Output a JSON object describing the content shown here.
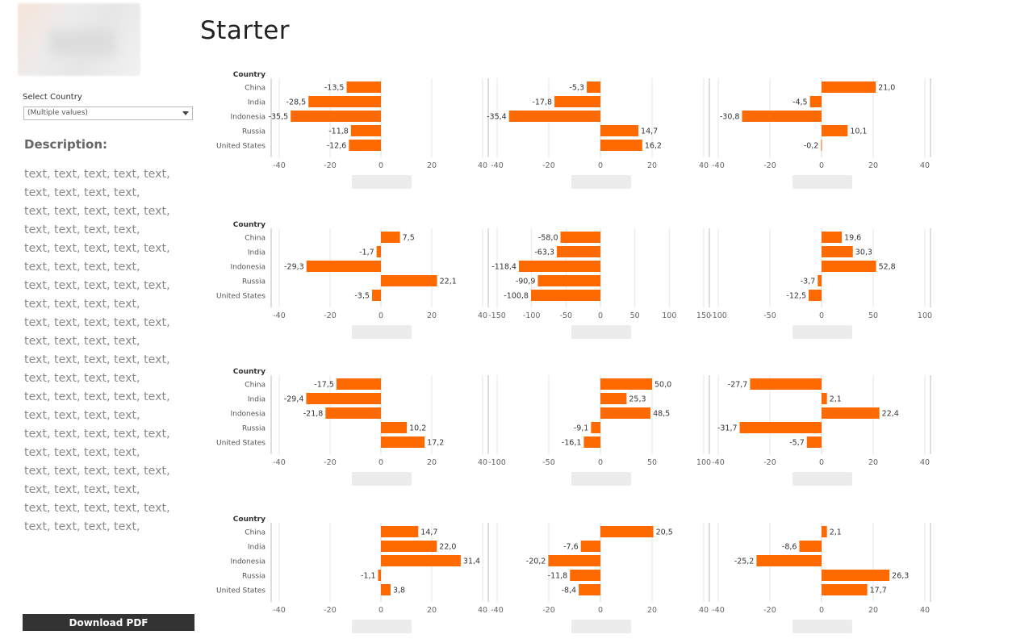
{
  "page": {
    "title": "Starter"
  },
  "sidebar": {
    "filter_label": "Select Country",
    "filter_value": "(Multiple values)",
    "description_title": "Description:",
    "description_lines": [
      "text, text, text, text, text,",
      "text, text, text, text,",
      "text, text, text, text, text,",
      "text, text, text, text,",
      "text, text, text, text, text,",
      "text, text, text, text,",
      "text, text, text, text, text,",
      "text, text, text, text,",
      "text, text, text, text, text,",
      "text, text, text, text,",
      "text, text, text, text, text,",
      "text, text, text, text,",
      "text, text, text, text, text,",
      "text, text, text, text,",
      "text, text, text, text, text,",
      "text, text, text, text,",
      "text, text, text, text, text,",
      "text, text, text, text,",
      "text, text, text, text, text,",
      "text, text, text, text,"
    ],
    "download_label": "Download PDF"
  },
  "colors": {
    "bar": "#ff6a00",
    "axis_text": "#666666",
    "gridline": "#e6e6e6",
    "divider": "#bdbdbd"
  },
  "chart_data": {
    "type": "bar",
    "orientation": "horizontal",
    "row_header": "Country",
    "categories": [
      "China",
      "India",
      "Indonesia",
      "Russia",
      "United States"
    ],
    "rows": [
      {
        "panels": [
          {
            "values": [
              -13.5,
              -28.5,
              -35.5,
              -11.8,
              -12.6
            ],
            "ticks": [
              -40,
              -20,
              0,
              20,
              40
            ]
          },
          {
            "values": [
              -5.3,
              -17.8,
              -35.4,
              14.7,
              16.2
            ],
            "ticks": [
              -40,
              -20,
              0,
              20,
              40
            ]
          },
          {
            "values": [
              21.0,
              -4.5,
              -30.8,
              10.1,
              -0.2
            ],
            "ticks": [
              -40,
              -20,
              0,
              20,
              40
            ]
          }
        ]
      },
      {
        "panels": [
          {
            "values": [
              7.5,
              -1.7,
              -29.3,
              22.1,
              -3.5
            ],
            "ticks": [
              -40,
              -20,
              0,
              20,
              40
            ]
          },
          {
            "values": [
              -58.0,
              -63.3,
              -118.4,
              -90.9,
              -100.8
            ],
            "ticks": [
              -150,
              -100,
              -50,
              0,
              50,
              100,
              150
            ]
          },
          {
            "values": [
              19.6,
              30.3,
              52.8,
              -3.7,
              -12.5
            ],
            "ticks": [
              -100,
              -50,
              0,
              50,
              100
            ]
          }
        ]
      },
      {
        "panels": [
          {
            "values": [
              -17.5,
              -29.4,
              -21.8,
              10.2,
              17.2
            ],
            "ticks": [
              -40,
              -20,
              0,
              20,
              40
            ]
          },
          {
            "values": [
              50.0,
              25.3,
              48.5,
              -9.1,
              -16.1
            ],
            "ticks": [
              -100,
              -50,
              0,
              50,
              100
            ]
          },
          {
            "values": [
              -27.7,
              2.1,
              22.4,
              -31.7,
              -5.7
            ],
            "ticks": [
              -40,
              -20,
              0,
              20,
              40
            ]
          }
        ]
      },
      {
        "panels": [
          {
            "values": [
              14.7,
              22.0,
              31.4,
              -1.1,
              3.8
            ],
            "ticks": [
              -40,
              -20,
              0,
              20,
              40
            ]
          },
          {
            "values": [
              20.5,
              -7.6,
              -20.2,
              -11.8,
              -8.4
            ],
            "ticks": [
              -40,
              -20,
              0,
              20,
              40
            ]
          },
          {
            "values": [
              2.1,
              -8.6,
              -25.2,
              26.3,
              17.7
            ],
            "ticks": [
              -40,
              -20,
              0,
              20,
              40
            ]
          }
        ]
      }
    ]
  }
}
